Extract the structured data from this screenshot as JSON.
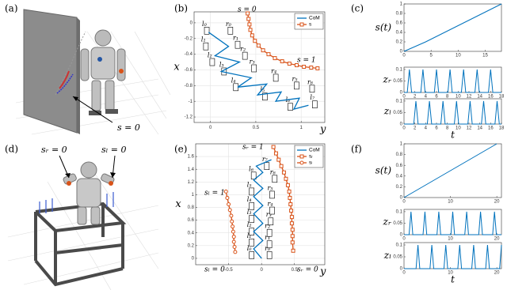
{
  "panel_labels": [
    "(a)",
    "(b)",
    "(c)",
    "(d)",
    "(e)",
    "(f)"
  ],
  "illustrations": {
    "a": {
      "annotation": "s = 0"
    },
    "d": {
      "annotations": [
        "sᵣ = 0",
        "sₗ = 0"
      ]
    }
  },
  "chart_data": [
    {
      "type": "line",
      "xlabel": "y",
      "ylabel": "x",
      "xlim": [
        -0.18,
        1.26
      ],
      "ylim": [
        -1.27,
        0.14
      ],
      "xticks": [
        0,
        0.5,
        1
      ],
      "yticks": [
        0,
        -0.2,
        -0.4,
        -0.6,
        -0.8,
        -1,
        -1.2
      ],
      "grid": true,
      "legend": "upper right",
      "series": [
        {
          "name": "CoM",
          "color": "#0072bd",
          "marker": "none",
          "x": [
            -0.02,
            0.2,
            0.05,
            0.32,
            0.12,
            0.45,
            0.3,
            0.62,
            0.52,
            0.78,
            0.72,
            0.98,
            0.92,
            1.08
          ],
          "values": [
            -0.12,
            -0.3,
            -0.42,
            -0.5,
            -0.62,
            -0.7,
            -0.82,
            -0.78,
            -0.92,
            -0.88,
            -1.0,
            -0.96,
            -1.1,
            -1.05
          ]
        },
        {
          "name": "s",
          "color": "#d95319",
          "marker": "square",
          "x": [
            0.41,
            0.42,
            0.43,
            0.44,
            0.46,
            0.49,
            0.53,
            0.58,
            0.64,
            0.71,
            0.79,
            0.87,
            0.95,
            1.03,
            1.11,
            1.18
          ],
          "values": [
            0.12,
            0.05,
            -0.02,
            -0.09,
            -0.16,
            -0.23,
            -0.29,
            -0.35,
            -0.4,
            -0.45,
            -0.49,
            -0.52,
            -0.54,
            -0.56,
            -0.57,
            -0.58
          ]
        }
      ],
      "annotations": [
        {
          "text": "s = 0"
        },
        {
          "text": "s = 1"
        }
      ],
      "footprints": [
        {
          "label": "l₀",
          "x": -0.04,
          "y": -0.1
        },
        {
          "label": "r₀",
          "x": 0.22,
          "y": -0.1
        },
        {
          "label": "l₁",
          "x": -0.05,
          "y": -0.3
        },
        {
          "label": "r₁",
          "x": 0.3,
          "y": -0.28
        },
        {
          "label": "l₂",
          "x": 0.02,
          "y": -0.5
        },
        {
          "label": "r₂",
          "x": 0.38,
          "y": -0.42
        },
        {
          "label": "l₃",
          "x": 0.15,
          "y": -0.62
        },
        {
          "label": "r₃",
          "x": 0.48,
          "y": -0.58
        },
        {
          "label": "l₄",
          "x": 0.28,
          "y": -0.82
        },
        {
          "label": "r₄",
          "x": 0.72,
          "y": -0.7
        },
        {
          "label": "l₅",
          "x": 0.6,
          "y": -0.94
        },
        {
          "label": "r₅",
          "x": 0.95,
          "y": -0.8
        },
        {
          "label": "l₆",
          "x": 0.88,
          "y": -1.07
        },
        {
          "label": "r₆",
          "x": 1.12,
          "y": -0.84
        },
        {
          "label": "l₇",
          "x": 1.15,
          "y": -1.04
        }
      ]
    },
    {
      "type": "line",
      "ylabel": "s(t)",
      "xlim": [
        0,
        18
      ],
      "ylim": [
        0,
        1
      ],
      "xticks": [
        0,
        5,
        10,
        15
      ],
      "yticks": [
        0,
        0.2,
        0.4,
        0.6,
        0.8,
        1
      ],
      "grid": false,
      "series": [
        {
          "color": "#0072bd",
          "marker": "none",
          "x": [
            0,
            2,
            4,
            18
          ],
          "values": [
            0,
            0.1,
            0.2,
            1
          ]
        }
      ]
    },
    {
      "type": "line",
      "ylabel": "zᵣ",
      "xlim": [
        0,
        18
      ],
      "ylim": [
        0,
        0.11
      ],
      "xticks": [
        0,
        2,
        4,
        6,
        8,
        10,
        12,
        14,
        16,
        18
      ],
      "yticks": [
        0,
        0.05,
        0.1
      ],
      "grid": false,
      "series": [
        {
          "color": "#0072bd",
          "marker": "none",
          "x": [
            0,
            0.6,
            1,
            1.4,
            3.1,
            3.5,
            3.9,
            5.6,
            6,
            6.4,
            8.1,
            8.5,
            8.9,
            10.6,
            11,
            11.4,
            13.1,
            13.5,
            13.9,
            15.6,
            16,
            16.4,
            18
          ],
          "values": [
            0,
            0,
            0.1,
            0,
            0,
            0.1,
            0,
            0,
            0.1,
            0,
            0,
            0.1,
            0,
            0,
            0.1,
            0,
            0,
            0.1,
            0,
            0,
            0.1,
            0,
            0
          ]
        }
      ]
    },
    {
      "type": "line",
      "ylabel": "zₗ",
      "xlabel": "t",
      "xlim": [
        0,
        18
      ],
      "ylim": [
        0,
        0.11
      ],
      "xticks": [
        0,
        2,
        4,
        6,
        8,
        10,
        12,
        14,
        16,
        18
      ],
      "yticks": [
        0,
        0.05,
        0.1
      ],
      "grid": false,
      "series": [
        {
          "color": "#0072bd",
          "marker": "none",
          "x": [
            0,
            1.8,
            2.2,
            2.6,
            4.3,
            4.7,
            5.1,
            6.8,
            7.2,
            7.6,
            9.3,
            9.7,
            10.1,
            11.8,
            12.2,
            12.6,
            14.3,
            14.7,
            15.1,
            16.8,
            17.2,
            17.6,
            18
          ],
          "values": [
            0,
            0,
            0.1,
            0,
            0,
            0.1,
            0,
            0,
            0.1,
            0,
            0,
            0.1,
            0,
            0,
            0.1,
            0,
            0,
            0.1,
            0,
            0,
            0.1,
            0,
            0
          ]
        }
      ]
    },
    {
      "type": "line",
      "xlabel": "y",
      "ylabel": "x",
      "xlim": [
        -1,
        0.96
      ],
      "ylim": [
        -0.1,
        1.8
      ],
      "xticks": [
        -0.5,
        0,
        0.5
      ],
      "yticks": [
        0,
        0.2,
        0.4,
        0.6,
        0.8,
        1,
        1.2,
        1.4,
        1.6
      ],
      "grid": true,
      "legend": "upper right",
      "series": [
        {
          "name": "CoM",
          "color": "#0072bd",
          "marker": "none",
          "x": [
            0.0,
            -0.12,
            0.02,
            -0.12,
            0.02,
            -0.12,
            0.02,
            -0.12,
            0.02,
            -0.12,
            0.02,
            -0.08,
            0.15
          ],
          "values": [
            0.0,
            0.15,
            0.28,
            0.42,
            0.55,
            0.7,
            0.83,
            0.97,
            1.1,
            1.23,
            1.35,
            1.45,
            1.55
          ]
        },
        {
          "name": "sᵣ",
          "color": "#d95319",
          "marker": "square",
          "x": [
            0.18,
            0.22,
            0.26,
            0.3,
            0.34,
            0.37,
            0.4,
            0.42,
            0.43,
            0.44,
            0.45,
            0.46,
            0.46,
            0.47,
            0.47,
            0.47,
            0.48
          ],
          "values": [
            1.75,
            1.65,
            1.55,
            1.45,
            1.35,
            1.25,
            1.15,
            1.05,
            0.95,
            0.85,
            0.75,
            0.65,
            0.55,
            0.45,
            0.35,
            0.25,
            0.12
          ]
        },
        {
          "name": "sₗ",
          "color": "#d95319",
          "marker": "circle",
          "x": [
            -0.54,
            -0.52,
            -0.5,
            -0.48,
            -0.46,
            -0.45,
            -0.44,
            -0.43,
            -0.42,
            -0.42,
            -0.41,
            -0.4
          ],
          "values": [
            1.05,
            0.95,
            0.85,
            0.76,
            0.67,
            0.58,
            0.5,
            0.42,
            0.34,
            0.26,
            0.18,
            0.1
          ]
        }
      ],
      "annotations": [
        {
          "text": "sᵣ = 1"
        },
        {
          "text": "sₗ = 1"
        },
        {
          "text": "sₗ = 0"
        },
        {
          "text": "sᵣ = 0"
        }
      ],
      "footprints": [
        {
          "label": "l₀",
          "x": -0.15,
          "y": 0.05
        },
        {
          "label": "r₀",
          "x": 0.12,
          "y": 0.05
        },
        {
          "label": "l₁",
          "x": -0.15,
          "y": 0.25
        },
        {
          "label": "r₁",
          "x": 0.12,
          "y": 0.22
        },
        {
          "label": "l₂",
          "x": -0.15,
          "y": 0.42
        },
        {
          "label": "r₂",
          "x": 0.12,
          "y": 0.4
        },
        {
          "label": "l₃",
          "x": -0.15,
          "y": 0.62
        },
        {
          "label": "r₃",
          "x": 0.14,
          "y": 0.58
        },
        {
          "label": "l₄",
          "x": -0.15,
          "y": 0.82
        },
        {
          "label": "r₄",
          "x": 0.16,
          "y": 0.75
        },
        {
          "label": "l₅",
          "x": -0.15,
          "y": 1.05
        },
        {
          "label": "r₅",
          "x": 0.16,
          "y": 1.0
        },
        {
          "label": "l₆",
          "x": -0.12,
          "y": 1.3
        },
        {
          "label": "r₆",
          "x": 0.2,
          "y": 1.25
        },
        {
          "label": "r₇",
          "x": 0.08,
          "y": 1.45
        }
      ]
    },
    {
      "type": "line",
      "ylabel": "s(t)",
      "xlim": [
        0,
        21
      ],
      "ylim": [
        0,
        1
      ],
      "xticks": [
        0,
        10,
        20
      ],
      "yticks": [
        0,
        0.2,
        0.4,
        0.6,
        0.8,
        1
      ],
      "grid": false,
      "series": [
        {
          "color": "#0072bd",
          "marker": "none",
          "x": [
            0,
            20
          ],
          "values": [
            0,
            1
          ]
        }
      ]
    },
    {
      "type": "line",
      "ylabel": "zᵣ",
      "xlim": [
        0,
        21
      ],
      "ylim": [
        0,
        0.11
      ],
      "xticks": [
        0,
        10,
        20
      ],
      "yticks": [
        0,
        0.05,
        0.1
      ],
      "grid": false,
      "series": [
        {
          "color": "#0072bd",
          "marker": "none",
          "x": [
            0,
            1.1,
            1.5,
            1.9,
            4.1,
            4.5,
            4.9,
            7.1,
            7.5,
            7.9,
            10.1,
            10.5,
            10.9,
            13.1,
            13.5,
            13.9,
            16.1,
            16.5,
            16.9,
            19.1,
            19.5,
            19.9,
            21
          ],
          "values": [
            0,
            0,
            0.1,
            0,
            0,
            0.1,
            0,
            0,
            0.1,
            0,
            0,
            0.1,
            0,
            0,
            0.1,
            0,
            0,
            0.1,
            0,
            0,
            0.1,
            0,
            0
          ]
        }
      ]
    },
    {
      "type": "line",
      "ylabel": "zₗ",
      "xlabel": "t",
      "xlim": [
        0,
        21
      ],
      "ylim": [
        0,
        0.11
      ],
      "xticks": [
        0,
        10,
        20
      ],
      "yticks": [
        0,
        0.05,
        0.1
      ],
      "grid": false,
      "series": [
        {
          "color": "#0072bd",
          "marker": "none",
          "x": [
            0,
            2.6,
            3,
            3.4,
            5.6,
            6,
            6.4,
            8.6,
            9,
            9.4,
            11.6,
            12,
            12.4,
            14.6,
            15,
            15.4,
            17.6,
            18,
            18.4,
            20.6,
            21
          ],
          "values": [
            0,
            0,
            0.1,
            0,
            0,
            0.1,
            0,
            0,
            0.1,
            0,
            0,
            0.1,
            0,
            0,
            0.1,
            0,
            0,
            0.1,
            0,
            0,
            0.1
          ]
        }
      ]
    }
  ]
}
